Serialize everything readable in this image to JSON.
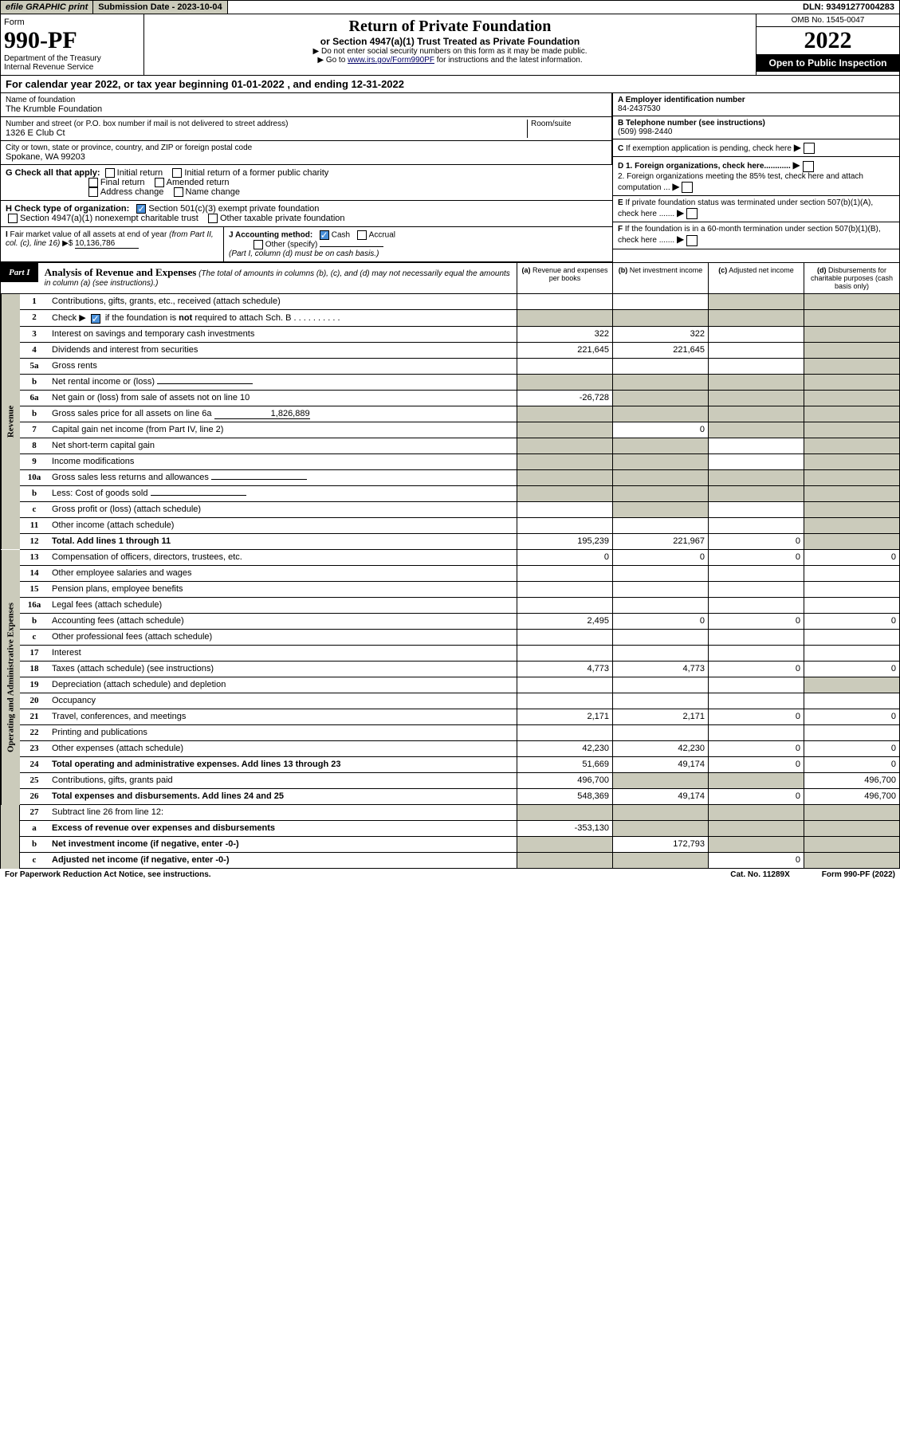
{
  "top": {
    "efile": "efile GRAPHIC print",
    "subdate_label": "Submission Date - 2023-10-04",
    "dln": "DLN: 93491277004283"
  },
  "header": {
    "form": "Form",
    "form_no": "990-PF",
    "dept": "Department of the Treasury\nInternal Revenue Service",
    "title": "Return of Private Foundation",
    "subtitle": "or Section 4947(a)(1) Trust Treated as Private Foundation",
    "instr1": "▶ Do not enter social security numbers on this form as it may be made public.",
    "instr2": "▶ Go to www.irs.gov/Form990PF for instructions and the latest information.",
    "link": "www.irs.gov/Form990PF",
    "omb": "OMB No. 1545-0047",
    "year": "2022",
    "open": "Open to Public Inspection"
  },
  "cal_year": "For calendar year 2022, or tax year beginning 01-01-2022                        , and ending 12-31-2022",
  "info": {
    "name_label": "Name of foundation",
    "name": "The Krumble Foundation",
    "addr_label": "Number and street (or P.O. box number if mail is not delivered to street address)",
    "addr": "1326 E Club Ct",
    "room_label": "Room/suite",
    "city_label": "City or town, state or province, country, and ZIP or foreign postal code",
    "city": "Spokane, WA  99203",
    "a_label": "A Employer identification number",
    "a_val": "84-2437530",
    "b_label": "B Telephone number (see instructions)",
    "b_val": "(509) 998-2440",
    "c_label": "C If exemption application is pending, check here",
    "d1": "D 1. Foreign organizations, check here............",
    "d2": "2. Foreign organizations meeting the 85% test, check here and attach computation ...",
    "e_label": "E  If private foundation status was terminated under section 507(b)(1)(A), check here .......",
    "f_label": "F  If the foundation is in a 60-month termination under section 507(b)(1)(B), check here ......."
  },
  "g": {
    "label": "G Check all that apply:",
    "opts": [
      "Initial return",
      "Initial return of a former public charity",
      "Final return",
      "Amended return",
      "Address change",
      "Name change"
    ]
  },
  "h": {
    "label": "H Check type of organization:",
    "o1": "Section 501(c)(3) exempt private foundation",
    "o2": "Section 4947(a)(1) nonexempt charitable trust",
    "o3": "Other taxable private foundation"
  },
  "i": {
    "label": "I Fair market value of all assets at end of year (from Part II, col. (c), line 16) ▶$",
    "val": "10,136,786"
  },
  "j": {
    "label": "J Accounting method:",
    "cash": "Cash",
    "accrual": "Accrual",
    "other": "Other (specify)",
    "note": "(Part I, column (d) must be on cash basis.)"
  },
  "part1": {
    "tag": "Part I",
    "title": "Analysis of Revenue and Expenses",
    "note": "(The total of amounts in columns (b), (c), and (d) may not necessarily equal the amounts in column (a) (see instructions).)",
    "cols": {
      "a": "(a) Revenue and expenses per books",
      "b": "(b) Net investment income",
      "c": "(c) Adjusted net income",
      "d": "(d) Disbursements for charitable purposes (cash basis only)"
    }
  },
  "side_labels": {
    "rev": "Revenue",
    "exp": "Operating and Administrative Expenses"
  },
  "lines": [
    {
      "n": "1",
      "d": "Contributions, gifts, grants, etc., received (attach schedule)",
      "a": "",
      "b": "",
      "c": "g",
      "dd": "g"
    },
    {
      "n": "2",
      "d": "Check ▶ ☑ if the foundation is not required to attach Sch. B",
      "a": "g",
      "b": "g",
      "c": "g",
      "dd": "g",
      "chk": true
    },
    {
      "n": "3",
      "d": "Interest on savings and temporary cash investments",
      "a": "322",
      "b": "322",
      "c": "",
      "dd": "g"
    },
    {
      "n": "4",
      "d": "Dividends and interest from securities",
      "a": "221,645",
      "b": "221,645",
      "c": "",
      "dd": "g"
    },
    {
      "n": "5a",
      "d": "Gross rents",
      "a": "",
      "b": "",
      "c": "",
      "dd": "g"
    },
    {
      "n": "b",
      "d": "Net rental income or (loss)",
      "a": "g",
      "b": "g",
      "c": "g",
      "dd": "g",
      "inline": true
    },
    {
      "n": "6a",
      "d": "Net gain or (loss) from sale of assets not on line 10",
      "a": "-26,728",
      "b": "g",
      "c": "g",
      "dd": "g"
    },
    {
      "n": "b",
      "d": "Gross sales price for all assets on line 6a",
      "a": "g",
      "b": "g",
      "c": "g",
      "dd": "g",
      "inline": true,
      "ival": "1,826,889"
    },
    {
      "n": "7",
      "d": "Capital gain net income (from Part IV, line 2)",
      "a": "g",
      "b": "0",
      "c": "g",
      "dd": "g"
    },
    {
      "n": "8",
      "d": "Net short-term capital gain",
      "a": "g",
      "b": "g",
      "c": "",
      "dd": "g"
    },
    {
      "n": "9",
      "d": "Income modifications",
      "a": "g",
      "b": "g",
      "c": "",
      "dd": "g"
    },
    {
      "n": "10a",
      "d": "Gross sales less returns and allowances",
      "a": "g",
      "b": "g",
      "c": "g",
      "dd": "g",
      "inline": true
    },
    {
      "n": "b",
      "d": "Less: Cost of goods sold",
      "a": "g",
      "b": "g",
      "c": "g",
      "dd": "g",
      "inline": true
    },
    {
      "n": "c",
      "d": "Gross profit or (loss) (attach schedule)",
      "a": "",
      "b": "g",
      "c": "",
      "dd": "g"
    },
    {
      "n": "11",
      "d": "Other income (attach schedule)",
      "a": "",
      "b": "",
      "c": "",
      "dd": "g"
    },
    {
      "n": "12",
      "d": "Total. Add lines 1 through 11",
      "a": "195,239",
      "b": "221,967",
      "c": "0",
      "dd": "g",
      "bold": true
    }
  ],
  "exp_lines": [
    {
      "n": "13",
      "d": "Compensation of officers, directors, trustees, etc.",
      "a": "0",
      "b": "0",
      "c": "0",
      "dd": "0"
    },
    {
      "n": "14",
      "d": "Other employee salaries and wages",
      "a": "",
      "b": "",
      "c": "",
      "dd": ""
    },
    {
      "n": "15",
      "d": "Pension plans, employee benefits",
      "a": "",
      "b": "",
      "c": "",
      "dd": ""
    },
    {
      "n": "16a",
      "d": "Legal fees (attach schedule)",
      "a": "",
      "b": "",
      "c": "",
      "dd": ""
    },
    {
      "n": "b",
      "d": "Accounting fees (attach schedule)",
      "a": "2,495",
      "b": "0",
      "c": "0",
      "dd": "0"
    },
    {
      "n": "c",
      "d": "Other professional fees (attach schedule)",
      "a": "",
      "b": "",
      "c": "",
      "dd": ""
    },
    {
      "n": "17",
      "d": "Interest",
      "a": "",
      "b": "",
      "c": "",
      "dd": ""
    },
    {
      "n": "18",
      "d": "Taxes (attach schedule) (see instructions)",
      "a": "4,773",
      "b": "4,773",
      "c": "0",
      "dd": "0"
    },
    {
      "n": "19",
      "d": "Depreciation (attach schedule) and depletion",
      "a": "",
      "b": "",
      "c": "",
      "dd": "g"
    },
    {
      "n": "20",
      "d": "Occupancy",
      "a": "",
      "b": "",
      "c": "",
      "dd": ""
    },
    {
      "n": "21",
      "d": "Travel, conferences, and meetings",
      "a": "2,171",
      "b": "2,171",
      "c": "0",
      "dd": "0"
    },
    {
      "n": "22",
      "d": "Printing and publications",
      "a": "",
      "b": "",
      "c": "",
      "dd": ""
    },
    {
      "n": "23",
      "d": "Other expenses (attach schedule)",
      "a": "42,230",
      "b": "42,230",
      "c": "0",
      "dd": "0"
    },
    {
      "n": "24",
      "d": "Total operating and administrative expenses. Add lines 13 through 23",
      "a": "51,669",
      "b": "49,174",
      "c": "0",
      "dd": "0",
      "bold": true
    },
    {
      "n": "25",
      "d": "Contributions, gifts, grants paid",
      "a": "496,700",
      "b": "g",
      "c": "g",
      "dd": "496,700"
    },
    {
      "n": "26",
      "d": "Total expenses and disbursements. Add lines 24 and 25",
      "a": "548,369",
      "b": "49,174",
      "c": "0",
      "dd": "496,700",
      "bold": true
    }
  ],
  "bottom_lines": [
    {
      "n": "27",
      "d": "Subtract line 26 from line 12:",
      "a": "g",
      "b": "g",
      "c": "g",
      "dd": "g"
    },
    {
      "n": "a",
      "d": "Excess of revenue over expenses and disbursements",
      "a": "-353,130",
      "b": "g",
      "c": "g",
      "dd": "g",
      "bold": true
    },
    {
      "n": "b",
      "d": "Net investment income (if negative, enter -0-)",
      "a": "g",
      "b": "172,793",
      "c": "g",
      "dd": "g",
      "bold": true
    },
    {
      "n": "c",
      "d": "Adjusted net income (if negative, enter -0-)",
      "a": "g",
      "b": "g",
      "c": "0",
      "dd": "g",
      "bold": true
    }
  ],
  "footer": {
    "l": "For Paperwork Reduction Act Notice, see instructions.",
    "c": "Cat. No. 11289X",
    "r": "Form 990-PF (2022)"
  }
}
